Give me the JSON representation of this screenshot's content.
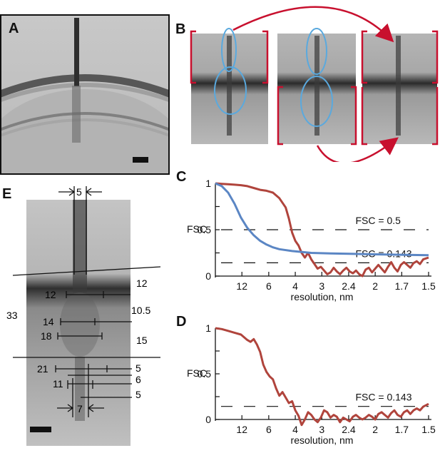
{
  "panels": {
    "A": {
      "letter": "A"
    },
    "B": {
      "letter": "B"
    },
    "C": {
      "letter": "C"
    },
    "D": {
      "letter": "D"
    },
    "E": {
      "letter": "E"
    }
  },
  "colors": {
    "red": "#b0443c",
    "blue": "#5b86c4",
    "bracket_red": "#c8102e",
    "ellipse_blue": "#5aa9de",
    "dash": "#111111"
  },
  "panelE": {
    "labels": {
      "top_width": "5",
      "bottom_width": "7",
      "left_total": "33",
      "right_12": "12",
      "right_10_5": "10.5",
      "right_15": "15",
      "w12": "12",
      "w14": "14",
      "w18": "18",
      "w21": "21",
      "w11": "11",
      "r5a": "5",
      "r6": "6",
      "r5b": "5"
    }
  },
  "chart_data": [
    {
      "type": "line",
      "panel": "C",
      "ylabel": "FSC",
      "xlabel": "resolution, nm",
      "x_ticks": [
        "12",
        "6",
        "4",
        "3",
        "2.4",
        "2",
        "1.7",
        "1.5"
      ],
      "x_tick_pos": [
        0.083,
        0.167,
        0.25,
        0.333,
        0.417,
        0.5,
        0.583,
        0.667
      ],
      "y_ticks": [
        "0",
        "0.5",
        "1"
      ],
      "ylim": [
        0,
        1
      ],
      "xlim": [
        0,
        0.667
      ],
      "thresholds": [
        {
          "label": "FSC = 0.5",
          "value": 0.5
        },
        {
          "label": "FSC = 0.143",
          "value": 0.143
        }
      ],
      "series": [
        {
          "color": "#b0443c",
          "points": [
            [
              0.0,
              1.0
            ],
            [
              0.02,
              0.995
            ],
            [
              0.04,
              0.99
            ],
            [
              0.06,
              0.985
            ],
            [
              0.08,
              0.98
            ],
            [
              0.1,
              0.97
            ],
            [
              0.12,
              0.95
            ],
            [
              0.14,
              0.93
            ],
            [
              0.16,
              0.92
            ],
            [
              0.18,
              0.9
            ],
            [
              0.2,
              0.84
            ],
            [
              0.22,
              0.74
            ],
            [
              0.23,
              0.62
            ],
            [
              0.24,
              0.47
            ],
            [
              0.25,
              0.38
            ],
            [
              0.26,
              0.33
            ],
            [
              0.27,
              0.25
            ],
            [
              0.28,
              0.2
            ],
            [
              0.29,
              0.25
            ],
            [
              0.3,
              0.18
            ],
            [
              0.31,
              0.13
            ],
            [
              0.32,
              0.08
            ],
            [
              0.33,
              0.1
            ],
            [
              0.34,
              0.06
            ],
            [
              0.35,
              0.02
            ],
            [
              0.36,
              0.04
            ],
            [
              0.37,
              0.09
            ],
            [
              0.38,
              0.05
            ],
            [
              0.39,
              0.02
            ],
            [
              0.4,
              0.06
            ],
            [
              0.41,
              0.09
            ],
            [
              0.42,
              0.05
            ],
            [
              0.43,
              0.03
            ],
            [
              0.44,
              0.06
            ],
            [
              0.45,
              0.02
            ],
            [
              0.46,
              0.0
            ],
            [
              0.47,
              0.07
            ],
            [
              0.48,
              0.09
            ],
            [
              0.49,
              0.04
            ],
            [
              0.5,
              0.08
            ],
            [
              0.51,
              0.12
            ],
            [
              0.52,
              0.08
            ],
            [
              0.53,
              0.04
            ],
            [
              0.54,
              0.1
            ],
            [
              0.55,
              0.15
            ],
            [
              0.56,
              0.09
            ],
            [
              0.57,
              0.05
            ],
            [
              0.58,
              0.12
            ],
            [
              0.59,
              0.15
            ],
            [
              0.6,
              0.12
            ],
            [
              0.61,
              0.09
            ],
            [
              0.62,
              0.14
            ],
            [
              0.63,
              0.16
            ],
            [
              0.64,
              0.13
            ],
            [
              0.65,
              0.18
            ],
            [
              0.667,
              0.2
            ]
          ]
        },
        {
          "color": "#5b86c4",
          "points": [
            [
              0.0,
              1.0
            ],
            [
              0.02,
              0.97
            ],
            [
              0.04,
              0.9
            ],
            [
              0.06,
              0.78
            ],
            [
              0.08,
              0.63
            ],
            [
              0.1,
              0.52
            ],
            [
              0.12,
              0.44
            ],
            [
              0.14,
              0.38
            ],
            [
              0.16,
              0.34
            ],
            [
              0.18,
              0.31
            ],
            [
              0.2,
              0.29
            ],
            [
              0.24,
              0.27
            ],
            [
              0.3,
              0.25
            ],
            [
              0.36,
              0.245
            ],
            [
              0.42,
              0.24
            ],
            [
              0.5,
              0.235
            ],
            [
              0.58,
              0.23
            ],
            [
              0.667,
              0.225
            ]
          ]
        }
      ]
    },
    {
      "type": "line",
      "panel": "D",
      "ylabel": "FSC",
      "xlabel": "resolution, nm",
      "x_ticks": [
        "12",
        "6",
        "4",
        "3",
        "2.4",
        "2",
        "1.7",
        "1.5"
      ],
      "x_tick_pos": [
        0.083,
        0.167,
        0.25,
        0.333,
        0.417,
        0.5,
        0.583,
        0.667
      ],
      "y_ticks": [
        "0",
        "0.5",
        "1"
      ],
      "ylim": [
        0,
        1
      ],
      "xlim": [
        0,
        0.667
      ],
      "thresholds": [
        {
          "label": "FSC = 0.143",
          "value": 0.143
        }
      ],
      "series": [
        {
          "color": "#b0443c",
          "points": [
            [
              0.0,
              1.0
            ],
            [
              0.02,
              0.99
            ],
            [
              0.04,
              0.97
            ],
            [
              0.06,
              0.95
            ],
            [
              0.08,
              0.93
            ],
            [
              0.1,
              0.87
            ],
            [
              0.11,
              0.85
            ],
            [
              0.12,
              0.88
            ],
            [
              0.13,
              0.82
            ],
            [
              0.14,
              0.74
            ],
            [
              0.15,
              0.6
            ],
            [
              0.16,
              0.52
            ],
            [
              0.17,
              0.47
            ],
            [
              0.18,
              0.44
            ],
            [
              0.19,
              0.34
            ],
            [
              0.2,
              0.26
            ],
            [
              0.21,
              0.3
            ],
            [
              0.22,
              0.24
            ],
            [
              0.23,
              0.18
            ],
            [
              0.24,
              0.2
            ],
            [
              0.25,
              0.1
            ],
            [
              0.26,
              0.04
            ],
            [
              0.27,
              -0.06
            ],
            [
              0.28,
              0.0
            ],
            [
              0.29,
              0.08
            ],
            [
              0.3,
              0.05
            ],
            [
              0.31,
              0.0
            ],
            [
              0.32,
              -0.03
            ],
            [
              0.33,
              0.02
            ],
            [
              0.34,
              0.1
            ],
            [
              0.35,
              0.08
            ],
            [
              0.36,
              0.02
            ],
            [
              0.37,
              0.05
            ],
            [
              0.38,
              0.03
            ],
            [
              0.39,
              -0.03
            ],
            [
              0.4,
              0.02
            ],
            [
              0.41,
              0.0
            ],
            [
              0.42,
              -0.02
            ],
            [
              0.43,
              0.03
            ],
            [
              0.44,
              0.05
            ],
            [
              0.45,
              0.02
            ],
            [
              0.46,
              0.0
            ],
            [
              0.47,
              0.02
            ],
            [
              0.48,
              0.05
            ],
            [
              0.49,
              0.03
            ],
            [
              0.5,
              0.0
            ],
            [
              0.51,
              0.06
            ],
            [
              0.52,
              0.08
            ],
            [
              0.53,
              0.05
            ],
            [
              0.54,
              0.02
            ],
            [
              0.55,
              0.07
            ],
            [
              0.56,
              0.1
            ],
            [
              0.57,
              0.05
            ],
            [
              0.58,
              0.03
            ],
            [
              0.59,
              0.08
            ],
            [
              0.6,
              0.1
            ],
            [
              0.61,
              0.06
            ],
            [
              0.62,
              0.1
            ],
            [
              0.63,
              0.12
            ],
            [
              0.64,
              0.1
            ],
            [
              0.65,
              0.14
            ],
            [
              0.667,
              0.17
            ]
          ]
        }
      ]
    }
  ]
}
